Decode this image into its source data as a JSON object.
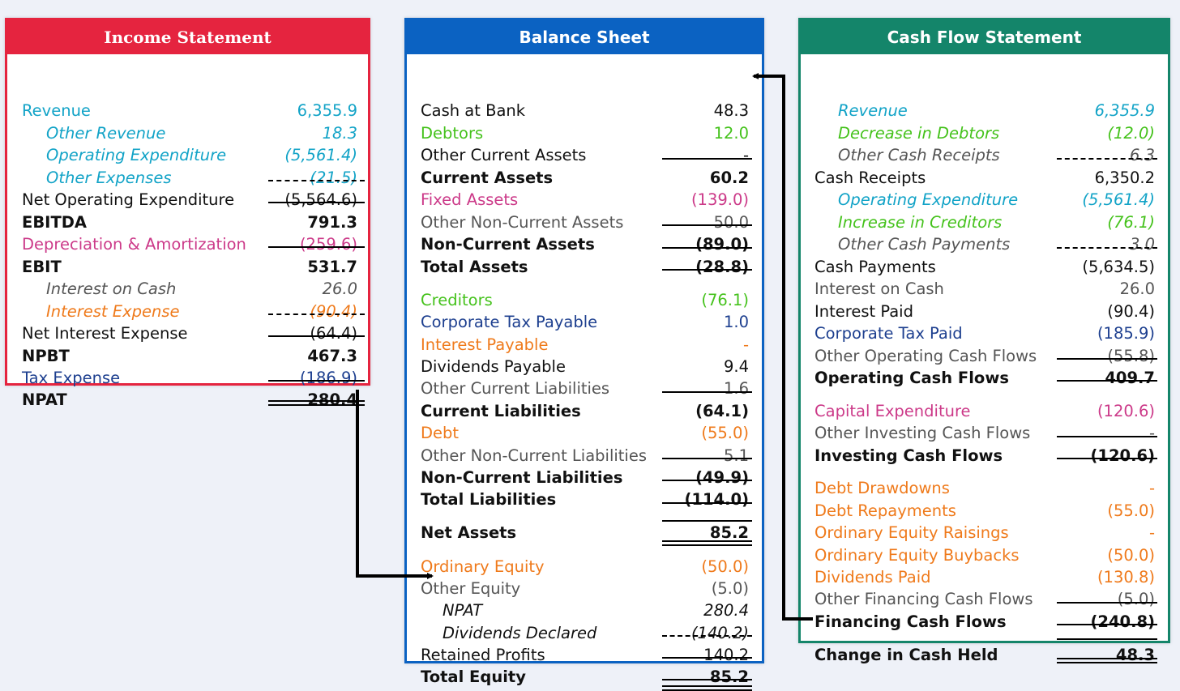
{
  "colors": {
    "income_border": "#e5243f",
    "balance_border": "#0b62c2",
    "cashflow_border": "#14856a",
    "cyan": "#12a3c7",
    "navy": "#1d3f8f",
    "green": "#45c21c",
    "magenta": "#cc3a89",
    "orange": "#ef7a1b",
    "gray": "#555555",
    "black": "#111111"
  },
  "income_statement": {
    "title": "Income Statement",
    "rows": [
      {
        "label": "Revenue",
        "value": "6,355.9",
        "color": "cyan",
        "indent": false,
        "style": ""
      },
      {
        "label": "Other Revenue",
        "value": "18.3",
        "color": "cyan",
        "indent": true,
        "style": "i"
      },
      {
        "label": "Operating Expenditure",
        "value": "(5,561.4)",
        "color": "cyan",
        "indent": true,
        "style": "i"
      },
      {
        "label": "Other Expenses",
        "value": "(21.5)",
        "color": "cyan",
        "indent": true,
        "style": "i"
      },
      {
        "label": "Net Operating Expenditure",
        "value": "(5,564.6)",
        "color": "black",
        "indent": false,
        "style": ""
      },
      {
        "label": "EBITDA",
        "value": "791.3",
        "color": "black",
        "indent": false,
        "style": "b"
      },
      {
        "label": "Depreciation & Amortization",
        "value": "(259.6)",
        "color": "magenta",
        "indent": false,
        "style": ""
      },
      {
        "label": "EBIT",
        "value": "531.7",
        "color": "black",
        "indent": false,
        "style": "b"
      },
      {
        "label": "Interest on Cash",
        "value": "26.0",
        "color": "gray",
        "indent": true,
        "style": "i"
      },
      {
        "label": "Interest Expense",
        "value": "(90.4)",
        "color": "orange",
        "indent": true,
        "style": "i"
      },
      {
        "label": "Net Interest Expense",
        "value": "(64.4)",
        "color": "black",
        "indent": false,
        "style": ""
      },
      {
        "label": "NPBT",
        "value": "467.3",
        "color": "black",
        "indent": false,
        "style": "b"
      },
      {
        "label": "Tax Expense",
        "value": "(186.9)",
        "color": "navy",
        "indent": false,
        "style": ""
      },
      {
        "label": "NPAT",
        "value": "280.4",
        "color": "black",
        "indent": false,
        "style": "b"
      }
    ]
  },
  "balance_sheet": {
    "title": "Balance Sheet",
    "rows": [
      {
        "label": "Cash at Bank",
        "value": "48.3",
        "color": "black",
        "indent": false,
        "style": ""
      },
      {
        "label": "Debtors",
        "value": "12.0",
        "color": "green",
        "indent": false,
        "style": ""
      },
      {
        "label": "Other Current Assets",
        "value": "-",
        "color": "black",
        "indent": false,
        "style": ""
      },
      {
        "label": "Current Assets",
        "value": "60.2",
        "color": "black",
        "indent": false,
        "style": "b"
      },
      {
        "label": "Fixed Assets",
        "value": "(139.0)",
        "color": "magenta",
        "indent": false,
        "style": ""
      },
      {
        "label": "Other Non-Current Assets",
        "value": "50.0",
        "color": "gray",
        "indent": false,
        "style": ""
      },
      {
        "label": "Non-Current Assets",
        "value": "(89.0)",
        "color": "black",
        "indent": false,
        "style": "b"
      },
      {
        "label": "Total Assets",
        "value": "(28.8)",
        "color": "black",
        "indent": false,
        "style": "b"
      },
      {
        "label": "Creditors",
        "value": "(76.1)",
        "color": "green",
        "indent": false,
        "style": ""
      },
      {
        "label": "Corporate Tax Payable",
        "value": "1.0",
        "color": "navy",
        "indent": false,
        "style": ""
      },
      {
        "label": "Interest Payable",
        "value": "-",
        "color": "orange",
        "indent": false,
        "style": ""
      },
      {
        "label": "Dividends Payable",
        "value": "9.4",
        "color": "black",
        "indent": false,
        "style": ""
      },
      {
        "label": "Other Current Liabilities",
        "value": "1.6",
        "color": "gray",
        "indent": false,
        "style": ""
      },
      {
        "label": "Current Liabilities",
        "value": "(64.1)",
        "color": "black",
        "indent": false,
        "style": "b"
      },
      {
        "label": "Debt",
        "value": "(55.0)",
        "color": "orange",
        "indent": false,
        "style": ""
      },
      {
        "label": "Other Non-Current Liabilities",
        "value": "5.1",
        "color": "gray",
        "indent": false,
        "style": ""
      },
      {
        "label": "Non-Current Liabilities",
        "value": "(49.9)",
        "color": "black",
        "indent": false,
        "style": "b"
      },
      {
        "label": "Total Liabilities",
        "value": "(114.0)",
        "color": "black",
        "indent": false,
        "style": "b"
      },
      {
        "label": "Net Assets",
        "value": "85.2",
        "color": "black",
        "indent": false,
        "style": "b"
      },
      {
        "label": "Ordinary Equity",
        "value": "(50.0)",
        "color": "orange",
        "indent": false,
        "style": ""
      },
      {
        "label": "Other Equity",
        "value": "(5.0)",
        "color": "gray",
        "indent": false,
        "style": ""
      },
      {
        "label": "NPAT",
        "value": "280.4",
        "color": "black",
        "indent": true,
        "style": "i"
      },
      {
        "label": "Dividends Declared",
        "value": "(140.2)",
        "color": "black",
        "indent": true,
        "style": "i"
      },
      {
        "label": "Retained Profits",
        "value": "140.2",
        "color": "black",
        "indent": false,
        "style": ""
      },
      {
        "label": "Total Equity",
        "value": "85.2",
        "color": "black",
        "indent": false,
        "style": "b"
      }
    ]
  },
  "cash_flow_statement": {
    "title": "Cash Flow Statement",
    "rows": [
      {
        "label": "Revenue",
        "value": "6,355.9",
        "color": "cyan",
        "indent": true,
        "style": "i"
      },
      {
        "label": "Decrease in Debtors",
        "value": "(12.0)",
        "color": "green",
        "indent": true,
        "style": "i"
      },
      {
        "label": "Other Cash Receipts",
        "value": "6.3",
        "color": "gray",
        "indent": true,
        "style": "i"
      },
      {
        "label": "Cash Receipts",
        "value": "6,350.2",
        "color": "black",
        "indent": false,
        "style": ""
      },
      {
        "label": "Operating Expenditure",
        "value": "(5,561.4)",
        "color": "cyan",
        "indent": true,
        "style": "i"
      },
      {
        "label": "Increase in Creditors",
        "value": "(76.1)",
        "color": "green",
        "indent": true,
        "style": "i"
      },
      {
        "label": "Other Cash Payments",
        "value": "3.0",
        "color": "gray",
        "indent": true,
        "style": "i"
      },
      {
        "label": "Cash Payments",
        "value": "(5,634.5)",
        "color": "black",
        "indent": false,
        "style": ""
      },
      {
        "label": "Interest on Cash",
        "value": "26.0",
        "color": "gray",
        "indent": false,
        "style": ""
      },
      {
        "label": "Interest Paid",
        "value": "(90.4)",
        "color": "black",
        "indent": false,
        "style": ""
      },
      {
        "label": "Corporate Tax Paid",
        "value": "(185.9)",
        "color": "navy",
        "indent": false,
        "style": ""
      },
      {
        "label": "Other Operating Cash Flows",
        "value": "(55.8)",
        "color": "gray",
        "indent": false,
        "style": ""
      },
      {
        "label": "Operating Cash Flows",
        "value": "409.7",
        "color": "black",
        "indent": false,
        "style": "b"
      },
      {
        "label": "Capital Expenditure",
        "value": "(120.6)",
        "color": "magenta",
        "indent": false,
        "style": ""
      },
      {
        "label": "Other Investing Cash Flows",
        "value": "-",
        "color": "gray",
        "indent": false,
        "style": ""
      },
      {
        "label": "Investing Cash Flows",
        "value": "(120.6)",
        "color": "black",
        "indent": false,
        "style": "b"
      },
      {
        "label": "Debt Drawdowns",
        "value": "-",
        "color": "orange",
        "indent": false,
        "style": ""
      },
      {
        "label": "Debt Repayments",
        "value": "(55.0)",
        "color": "orange",
        "indent": false,
        "style": ""
      },
      {
        "label": "Ordinary Equity Raisings",
        "value": "-",
        "color": "orange",
        "indent": false,
        "style": ""
      },
      {
        "label": "Ordinary Equity Buybacks",
        "value": "(50.0)",
        "color": "orange",
        "indent": false,
        "style": ""
      },
      {
        "label": "Dividends Paid",
        "value": "(130.8)",
        "color": "orange",
        "indent": false,
        "style": ""
      },
      {
        "label": "Other Financing Cash Flows",
        "value": "(5.0)",
        "color": "gray",
        "indent": false,
        "style": ""
      },
      {
        "label": "Financing Cash Flows",
        "value": "(240.8)",
        "color": "black",
        "indent": false,
        "style": "b"
      },
      {
        "label": "Change in Cash Held",
        "value": "48.3",
        "color": "black",
        "indent": false,
        "style": "b"
      }
    ]
  }
}
